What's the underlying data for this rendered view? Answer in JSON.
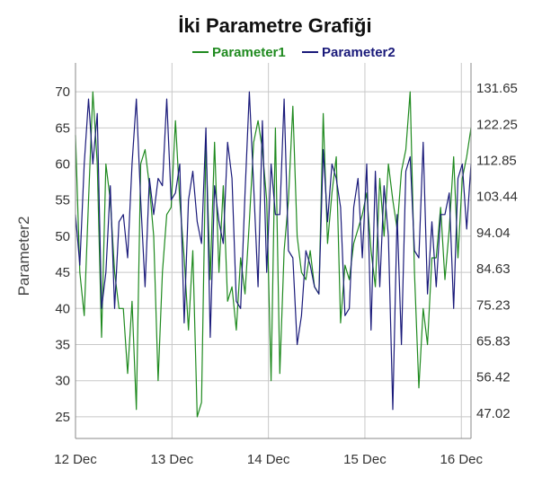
{
  "chart_data": {
    "type": "line",
    "title": "İki Parametre Grafiği",
    "ylabel": "Parameter2",
    "xlabel": "",
    "legend_position": "top",
    "grid": true,
    "x_ticks": [
      "12 Dec",
      "13 Dec",
      "14 Dec",
      "15 Dec",
      "16 Dec"
    ],
    "x_range_days": [
      0,
      4.1
    ],
    "y_left": {
      "ticks": [
        25,
        30,
        35,
        40,
        45,
        50,
        55,
        60,
        65,
        70
      ],
      "ylim": [
        22,
        74
      ]
    },
    "y_right": {
      "ticks": [
        "47.02",
        "56.42",
        "65.83",
        "75.23",
        "84.63",
        "94.04",
        "103.44",
        "112.85",
        "122.25",
        "131.65"
      ],
      "ylim": [
        40.44,
        138.23
      ]
    },
    "series": [
      {
        "name": "Parameter1",
        "color": "#1f8a1f",
        "axis": "left",
        "values": [
          64,
          45,
          39,
          55,
          70,
          60,
          36,
          60,
          55,
          45,
          40,
          40,
          31,
          41,
          26,
          60,
          62,
          57,
          50,
          30,
          45,
          53,
          54,
          66,
          55,
          47,
          37,
          48,
          25,
          27,
          63,
          44,
          63,
          45,
          57,
          41,
          43,
          37,
          47,
          42,
          52,
          63,
          66,
          62,
          55,
          30,
          65,
          31,
          48,
          55,
          68,
          50,
          45,
          44,
          48,
          43,
          42,
          67,
          49,
          56,
          61,
          38,
          46,
          44,
          49,
          51,
          53,
          56,
          48,
          43,
          58,
          50,
          60,
          55,
          51,
          59,
          62,
          70,
          45,
          29,
          40,
          35,
          47,
          47,
          54,
          44,
          51,
          61,
          47,
          58,
          61,
          65
        ]
      },
      {
        "name": "Parameter2",
        "color": "#1a1a7a",
        "axis": "left",
        "values": [
          53,
          46,
          60,
          69,
          60,
          67,
          40,
          45,
          57,
          40,
          52,
          53,
          47,
          60,
          69,
          55,
          43,
          58,
          53,
          58,
          57,
          69,
          55,
          56,
          60,
          38,
          55,
          59,
          52,
          49,
          65,
          36,
          57,
          52,
          49,
          63,
          58,
          41,
          40,
          56,
          70,
          57,
          43,
          66,
          45,
          60,
          53,
          53,
          69,
          48,
          47,
          35,
          39,
          48,
          46,
          43,
          42,
          62,
          52,
          60,
          58,
          54,
          39,
          40,
          54,
          58,
          47,
          60,
          37,
          59,
          43,
          57,
          50,
          26,
          53,
          35,
          59,
          61,
          48,
          47,
          63,
          42,
          52,
          43,
          53,
          53,
          56,
          40,
          58,
          60,
          51,
          60
        ]
      }
    ]
  }
}
